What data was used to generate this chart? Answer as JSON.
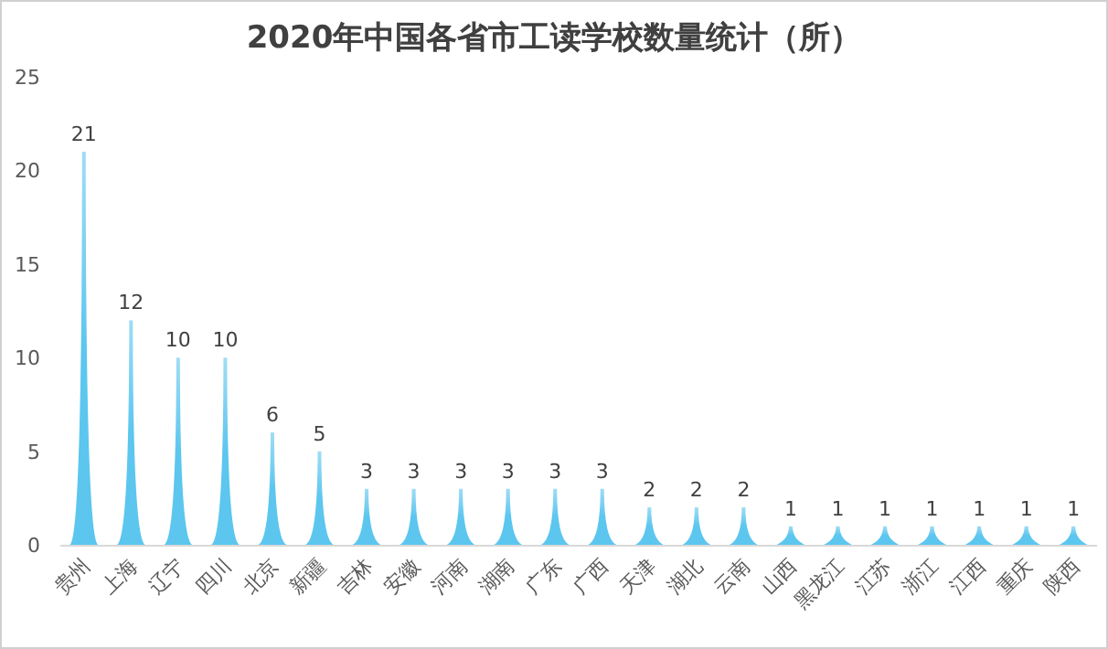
{
  "chart_data": {
    "type": "bar",
    "title": "2020年中国各省市工读学校数量统计（所）",
    "categories": [
      "贵州",
      "上海",
      "辽宁",
      "四川",
      "北京",
      "新疆",
      "吉林",
      "安徽",
      "河南",
      "湖南",
      "广东",
      "广西",
      "天津",
      "湖北",
      "云南",
      "山西",
      "黑龙江",
      "江苏",
      "浙江",
      "江西",
      "重庆",
      "陕西"
    ],
    "values": [
      21,
      12,
      10,
      10,
      6,
      5,
      3,
      3,
      3,
      3,
      3,
      3,
      2,
      2,
      2,
      1,
      1,
      1,
      1,
      1,
      1,
      1
    ],
    "color": "#5cc6ef",
    "ylim": [
      0,
      25
    ],
    "yticks": [
      0,
      5,
      10,
      15,
      20,
      25
    ],
    "data_labels": true,
    "grid": false
  }
}
